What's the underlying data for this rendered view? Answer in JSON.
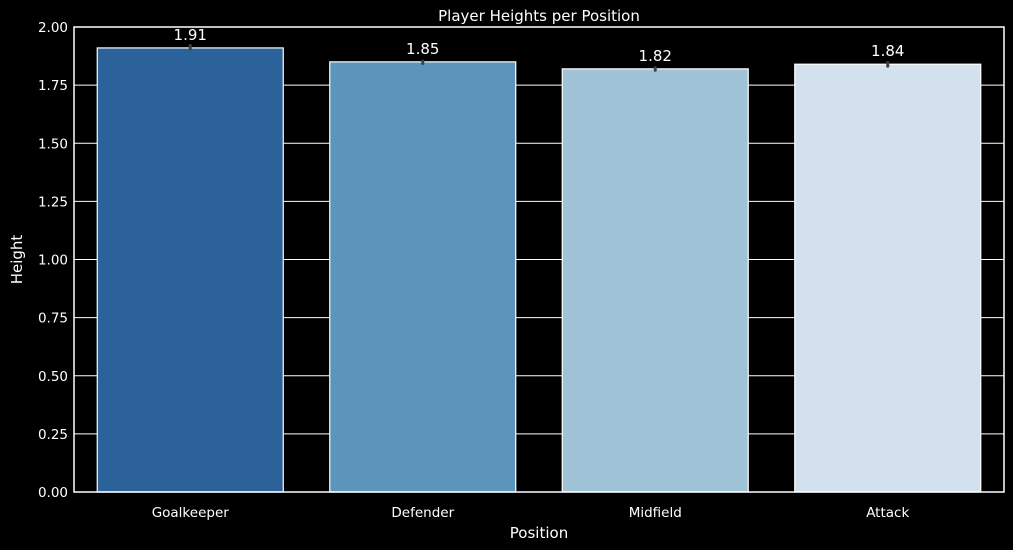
{
  "chart_data": {
    "type": "bar",
    "title": "Player Heights per Position",
    "xlabel": "Position",
    "ylabel": "Height",
    "categories": [
      "Goalkeeper",
      "Defender",
      "Midfield",
      "Attack"
    ],
    "values": [
      1.91,
      1.85,
      1.82,
      1.84
    ],
    "value_labels": [
      "1.91",
      "1.85",
      "1.82",
      "1.84"
    ],
    "error_low": [
      1.905,
      1.843,
      1.814,
      1.831
    ],
    "error_high": [
      1.921,
      1.853,
      1.826,
      1.847
    ],
    "ylim": [
      0,
      2.0
    ],
    "yticks": [
      0.0,
      0.25,
      0.5,
      0.75,
      1.0,
      1.25,
      1.5,
      1.75,
      2.0
    ],
    "ytick_labels": [
      "0.00",
      "0.25",
      "0.50",
      "0.75",
      "1.00",
      "1.25",
      "1.50",
      "1.75",
      "2.00"
    ],
    "colors": [
      "#2b6299",
      "#5b95bb",
      "#a0c2d6",
      "#d3e1ee"
    ],
    "background": "#000000",
    "grid": true,
    "grid_color": "#ffffff",
    "text_color": "#ffffff",
    "errorbar_color": "#3f3f3f"
  }
}
